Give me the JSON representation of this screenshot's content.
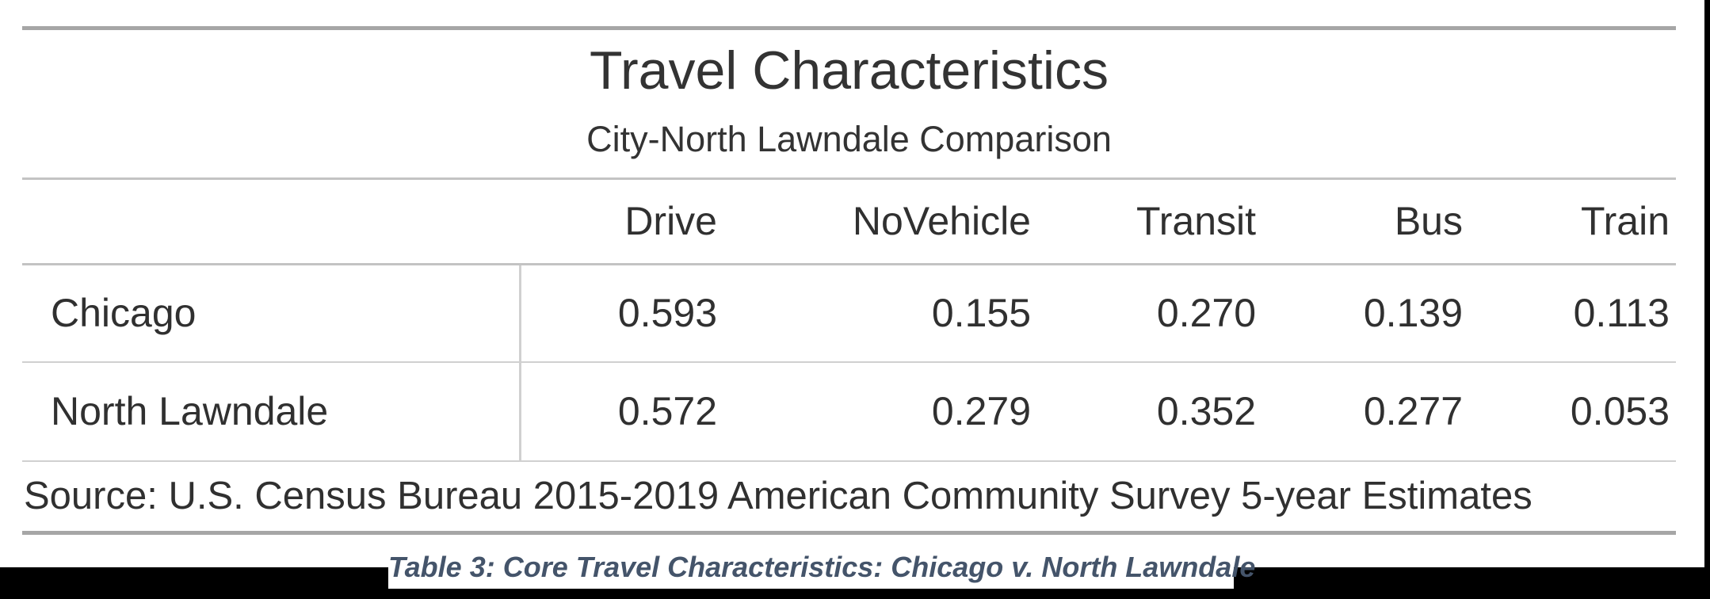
{
  "figure": {
    "title": "Travel Characteristics",
    "subtitle": "City-North Lawndale Comparison",
    "columns": [
      "Drive",
      "NoVehicle",
      "Transit",
      "Bus",
      "Train"
    ],
    "rows": [
      {
        "label": "Chicago",
        "values": [
          "0.593",
          "0.155",
          "0.270",
          "0.139",
          "0.113"
        ]
      },
      {
        "label": "North Lawndale",
        "values": [
          "0.572",
          "0.279",
          "0.352",
          "0.277",
          "0.053"
        ]
      }
    ],
    "source_note": "Source: U.S. Census Bureau 2015-2019 American Community Survey 5-year Estimates",
    "caption": "Table 3: Core Travel Characteristics: Chicago v. North Lawndale"
  },
  "colors": {
    "text": "#303030",
    "title_text": "#333333",
    "caption_text": "#44546A",
    "rule_heavy": "#a6a6a6",
    "rule_mid": "#c3c3c3",
    "rule_light": "#d0d0d0",
    "page_background": "#ffffff",
    "surround_background": "#000000"
  },
  "chart_data": {
    "type": "table",
    "title": "Travel Characteristics",
    "subtitle": "City-North Lawndale Comparison",
    "columns": [
      "Drive",
      "NoVehicle",
      "Transit",
      "Bus",
      "Train"
    ],
    "rows": [
      [
        "Chicago",
        0.593,
        0.155,
        0.27,
        0.139,
        0.113
      ],
      [
        "North Lawndale",
        0.572,
        0.279,
        0.352,
        0.277,
        0.053
      ]
    ],
    "source": "Source: U.S. Census Bureau 2015-2019 American Community Survey 5-year Estimates",
    "caption": "Table 3: Core Travel Characteristics: Chicago v. North Lawndale"
  }
}
